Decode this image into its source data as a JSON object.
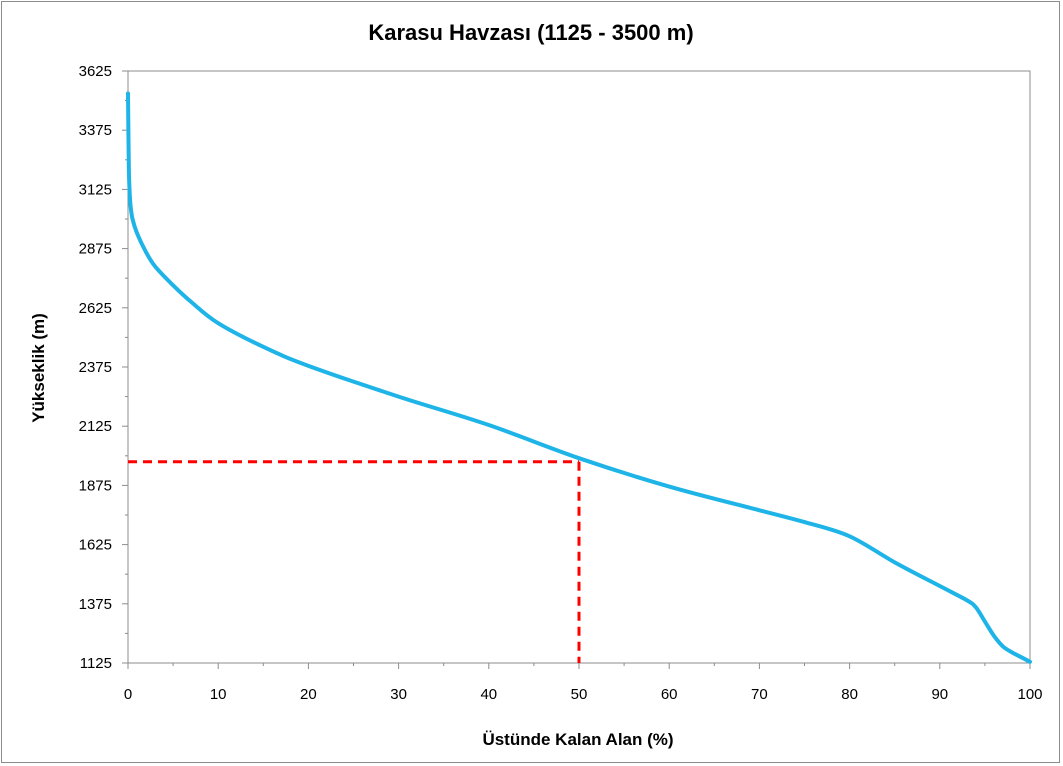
{
  "chart_data": {
    "type": "line",
    "title": "Karasu Havzası (1125 - 3500 m)",
    "xlabel": "Üstünde Kalan Alan (%)",
    "ylabel": "Yükseklik (m)",
    "xlim": [
      0,
      100
    ],
    "ylim": [
      1125,
      3625
    ],
    "xticks": [
      "0",
      "10",
      "20",
      "30",
      "40",
      "50",
      "60",
      "70",
      "80",
      "90",
      "100"
    ],
    "yticks": [
      "1125",
      "1375",
      "1625",
      "1875",
      "2125",
      "2375",
      "2625",
      "2875",
      "3125",
      "3375",
      "3625"
    ],
    "grid": false,
    "legend": "none",
    "series": [
      {
        "color": "#1EB4E8",
        "x": [
          0,
          0.05,
          0.1,
          0.2,
          0.3,
          0.5,
          1,
          2,
          3,
          5,
          7,
          10,
          15,
          20,
          30,
          40,
          50,
          60,
          70,
          75,
          80,
          85,
          90,
          93,
          94,
          95,
          96,
          97,
          98,
          99,
          100
        ],
        "y": [
          3530,
          3350,
          3200,
          3100,
          3050,
          3000,
          2940,
          2860,
          2800,
          2720,
          2650,
          2560,
          2460,
          2380,
          2250,
          2130,
          1990,
          1870,
          1770,
          1720,
          1660,
          1550,
          1450,
          1390,
          1360,
          1300,
          1240,
          1195,
          1170,
          1150,
          1130
        ]
      }
    ],
    "reference_lines": [
      {
        "x": [
          0,
          50
        ],
        "y": [
          1975,
          1975
        ],
        "color": "#FF0000",
        "style": "dashed"
      },
      {
        "x": [
          50,
          50
        ],
        "y": [
          1975,
          1125
        ],
        "color": "#FF0000",
        "style": "dashed"
      }
    ]
  }
}
